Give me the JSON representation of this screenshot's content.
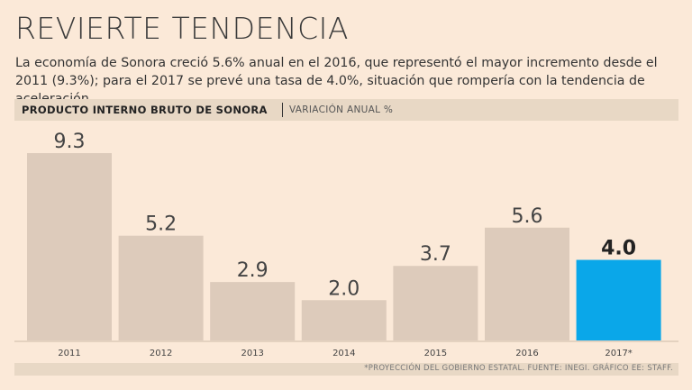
{
  "header": {
    "title": "REVIERTE TENDENCIA",
    "subtitle": "La economía de Sonora creció 5.6% anual en el 2016, que representó el mayor incremento desde el 2011 (9.3%); para el 2017 se prevé una tasa de 4.0%, situación que rompería con la tendencia de aceleración."
  },
  "band": {
    "bold": "PRODUCTO INTERNO BRUTO DE SONORA",
    "light": "VARIACIÓN ANUAL %"
  },
  "footer": {
    "note": "*PROYECCIÓN DEL GOBIERNO ESTATAL.  FUENTE: INEGI.  GRÁFICO EE: STAFF."
  },
  "colors": {
    "bar": "#ddcbbb",
    "highlight": "#0aa7e9",
    "background": "#fbe9d8"
  },
  "chart_data": {
    "type": "bar",
    "categories": [
      "2011",
      "2012",
      "2013",
      "2014",
      "2015",
      "2016",
      "2017*"
    ],
    "values": [
      9.3,
      5.2,
      2.9,
      2.0,
      3.7,
      5.6,
      4.0
    ],
    "value_labels": [
      "9.3",
      "5.2",
      "2.9",
      "2.0",
      "3.7",
      "5.6",
      "4.0"
    ],
    "highlight_index": 6,
    "ylim": [
      0,
      9.3
    ],
    "grid": false
  }
}
